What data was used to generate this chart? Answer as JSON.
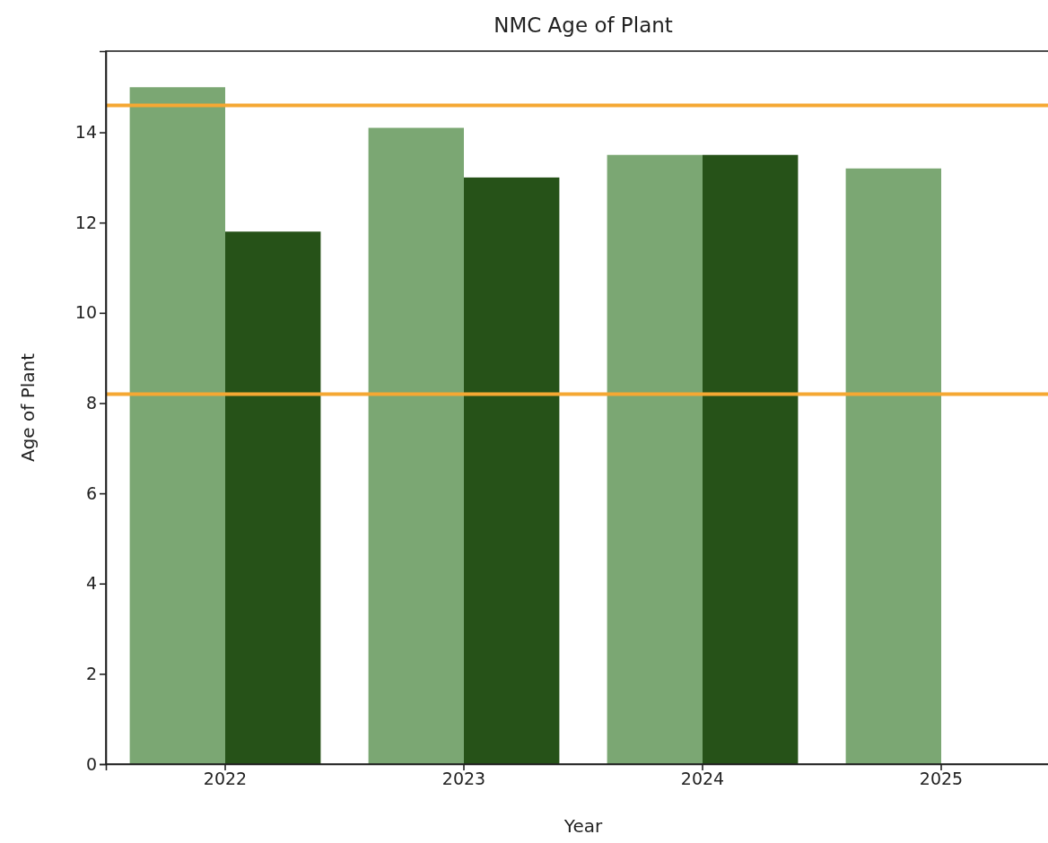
{
  "chart_data": {
    "type": "bar",
    "title": "NMC Age of Plant",
    "xlabel": "Year",
    "ylabel": "Age of Plant",
    "categories": [
      "2022",
      "2023",
      "2024",
      "2025"
    ],
    "series": [
      {
        "color": "#7ba773",
        "values": [
          15.0,
          14.1,
          13.5,
          13.2
        ]
      },
      {
        "color": "#265218",
        "values": [
          11.8,
          13.0,
          13.5,
          null
        ]
      }
    ],
    "ylim": [
      0,
      15.8
    ],
    "yticks": [
      0,
      2,
      4,
      6,
      8,
      10,
      12,
      14
    ],
    "ref_lines": [
      {
        "axis": "y",
        "value": 14.6,
        "color": "#f5a833"
      },
      {
        "axis": "y",
        "value": 8.2,
        "color": "#f5a833"
      }
    ],
    "grid": false
  }
}
